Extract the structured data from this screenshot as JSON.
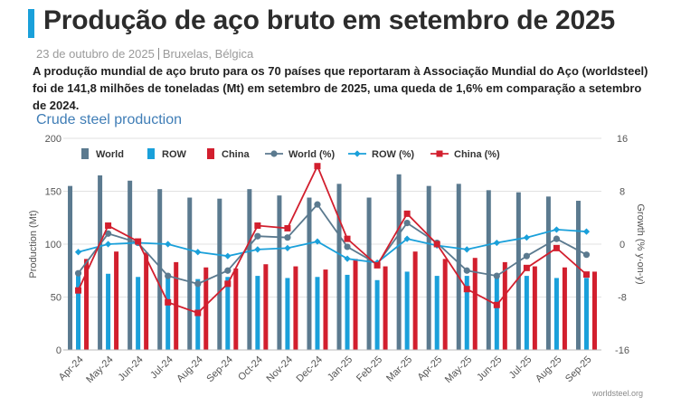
{
  "header": {
    "title": "Produção de aço bruto em setembro de 2025",
    "date": "23 de outubro de 2025",
    "location": "Bruxelas, Bélgica",
    "lede": "A produção mundial de aço bruto para os 70 países que reportaram à Associação Mundial do Aço (worldsteel) foi de 141,8 milhões de toneladas (Mt) em setembro de 2025, uma queda de 1,6% em comparação a setembro de 2024."
  },
  "credit": "worldsteel.org",
  "colors": {
    "world": "#5b7a8f",
    "row": "#1aa0da",
    "china": "#d21f2e",
    "accent": "#1aa0da"
  },
  "chart_data": {
    "type": "bar",
    "title": "Crude steel production",
    "xlabel": "",
    "ylabel": "Production (Mt)",
    "y2label": "Growth (% y-on-y)",
    "ylim": [
      0,
      200
    ],
    "y2lim": [
      -16,
      16
    ],
    "yticks": [
      0,
      50,
      100,
      150,
      200
    ],
    "y2ticks": [
      -16,
      -8,
      0,
      8,
      16
    ],
    "legend_position": "top",
    "categories": [
      "Apr-24",
      "May-24",
      "Jun-24",
      "Jul-24",
      "Aug-24",
      "Sep-24",
      "Oct-24",
      "Nov-24",
      "Dec-24",
      "Jan-25",
      "Feb-25",
      "Mar-25",
      "Apr-25",
      "May-25",
      "Jun-25",
      "Jul-25",
      "Aug-25",
      "Sep-25"
    ],
    "series": [
      {
        "name": "World",
        "kind": "bar",
        "color": "#5b7a8f",
        "values": [
          155,
          165,
          160,
          152,
          144,
          143,
          152,
          146,
          144,
          157,
          144,
          166,
          155,
          157,
          151,
          149,
          145,
          141
        ]
      },
      {
        "name": "ROW",
        "kind": "bar",
        "color": "#1aa0da",
        "values": [
          70,
          72,
          69,
          68,
          67,
          69,
          70,
          68,
          69,
          71,
          66,
          74,
          70,
          70,
          68,
          70,
          68,
          68
        ]
      },
      {
        "name": "China",
        "kind": "bar",
        "color": "#d21f2e",
        "values": [
          86,
          93,
          92,
          83,
          78,
          77,
          81,
          79,
          76,
          86,
          79,
          93,
          86,
          87,
          83,
          79,
          78,
          74
        ]
      },
      {
        "name": "World (%)",
        "kind": "line",
        "axis": "right",
        "color": "#5b7a8f",
        "values": [
          -4.4,
          1.6,
          0.2,
          -4.8,
          -6.0,
          -4.0,
          1.2,
          1.0,
          6.0,
          -0.4,
          -3.0,
          3.2,
          0.2,
          -4.0,
          -4.8,
          -1.8,
          0.8,
          -1.6
        ]
      },
      {
        "name": "ROW (%)",
        "kind": "line",
        "axis": "right",
        "color": "#1aa0da",
        "values": [
          -1.2,
          0.0,
          0.2,
          0.0,
          -1.2,
          -1.8,
          -0.8,
          -0.6,
          0.4,
          -2.2,
          -2.8,
          0.8,
          -0.2,
          -0.8,
          0.2,
          1.0,
          2.2,
          1.9
        ]
      },
      {
        "name": "China (%)",
        "kind": "line",
        "axis": "right",
        "color": "#d21f2e",
        "values": [
          -7.0,
          2.8,
          0.4,
          -8.8,
          -10.4,
          -6.0,
          2.8,
          2.4,
          11.8,
          0.8,
          -3.2,
          4.6,
          0.0,
          -6.8,
          -9.2,
          -3.6,
          -0.6,
          -4.6
        ]
      }
    ]
  }
}
